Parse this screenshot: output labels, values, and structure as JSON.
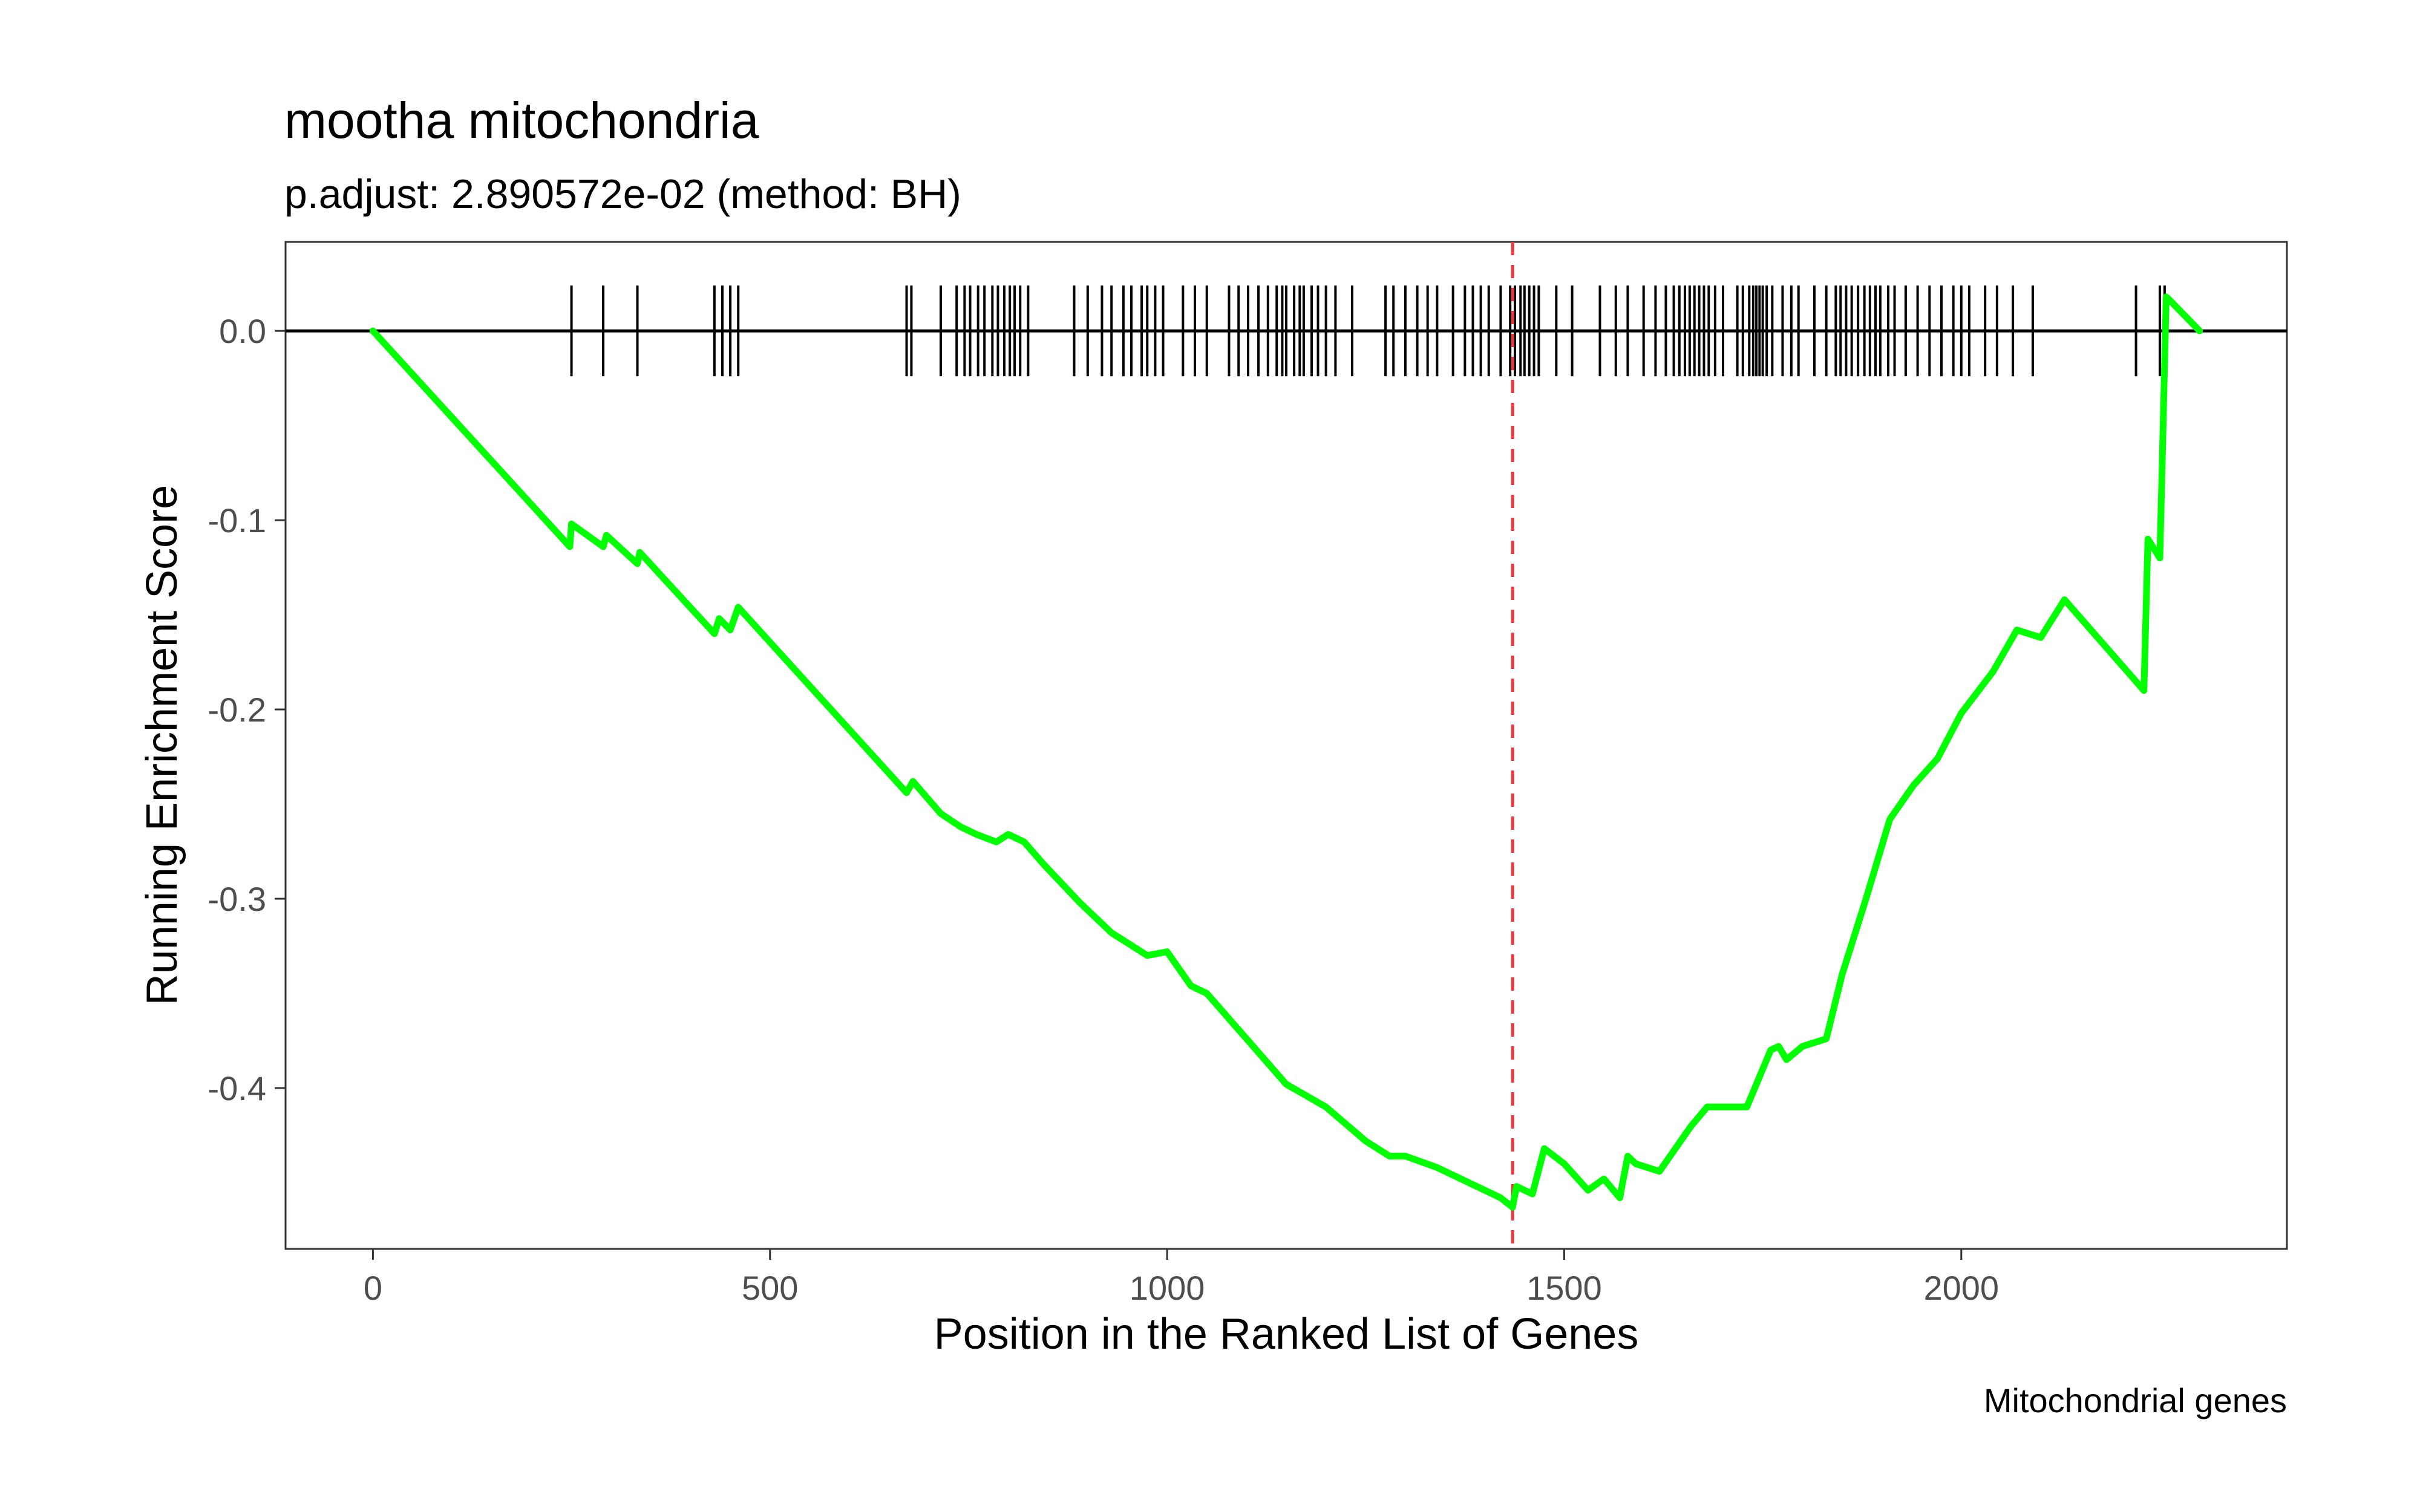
{
  "chart_data": {
    "type": "line",
    "title": "mootha mitochondria",
    "subtitle": "p.adjust: 2.890572e-02 (method: BH)",
    "xlabel": "Position in the Ranked List of Genes",
    "ylabel": "Running Enrichment Score",
    "caption": "Mitochondrial genes",
    "xlim": [
      -110,
      2410
    ],
    "ylim": [
      -0.485,
      0.047
    ],
    "x_ticks": [
      0,
      500,
      1000,
      1500,
      2000
    ],
    "x_tick_labels": [
      "0",
      "500",
      "1000",
      "1500",
      "2000"
    ],
    "y_ticks": [
      0.0,
      -0.1,
      -0.2,
      -0.3,
      -0.4
    ],
    "y_tick_labels": [
      "0.0",
      "-0.1",
      "-0.2",
      "-0.3",
      "-0.4"
    ],
    "grid": false,
    "reference_line": 0.0,
    "peak_position": 1435,
    "series": [
      {
        "color": "#00ff00",
        "x": [
          0,
          248,
          250,
          290,
          294,
          333,
          336,
          430,
          436,
          450,
          460,
          672,
          680,
          715,
          740,
          760,
          785,
          800,
          820,
          845,
          890,
          930,
          975,
          1000,
          1030,
          1050,
          1100,
          1150,
          1200,
          1250,
          1280,
          1300,
          1340,
          1380,
          1420,
          1435,
          1440,
          1460,
          1475,
          1500,
          1530,
          1550,
          1570,
          1580,
          1590,
          1620,
          1650,
          1660,
          1680,
          1700,
          1730,
          1760,
          1770,
          1780,
          1800,
          1830,
          1850,
          1880,
          1910,
          1940,
          1970,
          2000,
          2040,
          2070,
          2100,
          2130,
          2230,
          2235,
          2250,
          2253,
          2258,
          2263,
          2300
        ],
        "values": [
          0.0,
          -0.114,
          -0.102,
          -0.114,
          -0.108,
          -0.123,
          -0.117,
          -0.16,
          -0.152,
          -0.158,
          -0.146,
          -0.244,
          -0.238,
          -0.255,
          -0.262,
          -0.266,
          -0.27,
          -0.266,
          -0.27,
          -0.282,
          -0.302,
          -0.318,
          -0.33,
          -0.328,
          -0.346,
          -0.35,
          -0.374,
          -0.398,
          -0.41,
          -0.428,
          -0.436,
          -0.436,
          -0.442,
          -0.45,
          -0.458,
          -0.463,
          -0.452,
          -0.456,
          -0.432,
          -0.44,
          -0.454,
          -0.448,
          -0.458,
          -0.436,
          -0.44,
          -0.444,
          -0.426,
          -0.42,
          -0.41,
          -0.41,
          -0.41,
          -0.38,
          -0.378,
          -0.385,
          -0.378,
          -0.374,
          -0.34,
          -0.3,
          -0.258,
          -0.24,
          -0.226,
          -0.202,
          -0.18,
          -0.158,
          -0.162,
          -0.142,
          -0.19,
          -0.11,
          -0.12,
          -0.07,
          0.018,
          0.016,
          0.0
        ]
      }
    ],
    "hit_positions": [
      250,
      290,
      333,
      430,
      440,
      450,
      460,
      672,
      678,
      715,
      735,
      745,
      752,
      762,
      770,
      780,
      787,
      795,
      802,
      808,
      815,
      825,
      883,
      900,
      918,
      930,
      945,
      955,
      968,
      975,
      985,
      995,
      1020,
      1035,
      1050,
      1078,
      1090,
      1102,
      1115,
      1127,
      1138,
      1145,
      1150,
      1160,
      1167,
      1172,
      1182,
      1190,
      1200,
      1212,
      1233,
      1275,
      1285,
      1300,
      1315,
      1328,
      1340,
      1360,
      1375,
      1385,
      1395,
      1405,
      1420,
      1432,
      1438,
      1445,
      1450,
      1456,
      1462,
      1468,
      1490,
      1510,
      1545,
      1565,
      1580,
      1600,
      1615,
      1628,
      1638,
      1645,
      1652,
      1658,
      1664,
      1670,
      1676,
      1682,
      1690,
      1700,
      1718,
      1725,
      1733,
      1738,
      1742,
      1746,
      1750,
      1755,
      1762,
      1775,
      1786,
      1795,
      1815,
      1830,
      1842,
      1848,
      1855,
      1862,
      1870,
      1878,
      1885,
      1892,
      1898,
      1908,
      1916,
      1930,
      1945,
      1960,
      1975,
      1990,
      2000,
      2010,
      2030,
      2045,
      2065,
      2090,
      2220,
      2250,
      2256
    ]
  }
}
